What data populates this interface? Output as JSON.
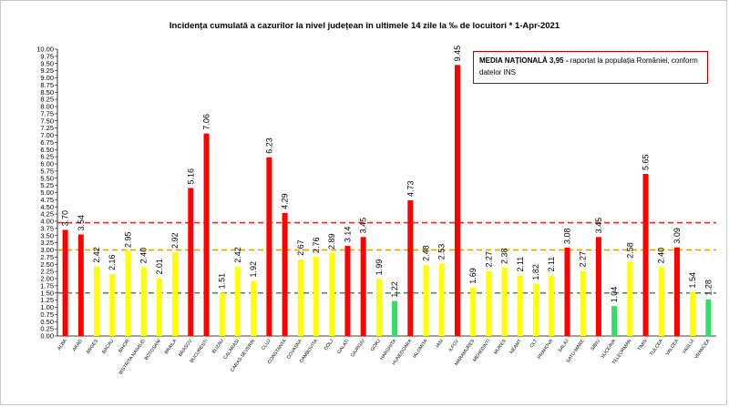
{
  "chart_data": {
    "type": "bar",
    "title": "Incidența cumulată a cazurilor la nivel județean în ultimele 14 zile la ‰ de locuitori * 1-Apr-2021",
    "categories": [
      "ALBA",
      "ARAD",
      "ARGES",
      "BACAU",
      "BIHOR",
      "BISTRITA NASAUD",
      "BOTOSANI",
      "BRAILA",
      "BRASOV",
      "BUCURESTI",
      "BUZAU",
      "CALARASI",
      "CARAS-SEVERIN",
      "CLUJ",
      "CONSTANTA",
      "COVASNA",
      "DAMBOVITA",
      "DOLJ",
      "GALATI",
      "GIURGIU",
      "GORJ",
      "HARGHITA",
      "HUNEDOARA",
      "IALOMITA",
      "IASI",
      "ILFOV",
      "MARAMURES",
      "MEHEDINTI",
      "MURES",
      "NEAMT",
      "OLT",
      "PRAHOVA",
      "SALAJ",
      "SATU-MARE",
      "SIBIU",
      "SUCEAVA",
      "TELEORMAN",
      "TIMIS",
      "TULCEA",
      "VALCEA",
      "VASLUI",
      "VRANCEA"
    ],
    "values": [
      3.7,
      3.54,
      2.42,
      2.16,
      2.95,
      2.4,
      2.01,
      2.92,
      5.16,
      7.06,
      1.51,
      2.42,
      1.92,
      6.23,
      4.29,
      2.67,
      2.76,
      2.89,
      3.14,
      3.45,
      1.99,
      1.22,
      4.73,
      2.48,
      2.53,
      9.45,
      1.69,
      2.27,
      2.38,
      2.11,
      1.82,
      2.11,
      3.08,
      2.27,
      3.45,
      1.04,
      2.58,
      5.65,
      2.4,
      3.09,
      1.54,
      1.28
    ],
    "value_labels": [
      "3.70",
      "3.54",
      "2.42",
      "2.16",
      "2.95",
      "2.40",
      "2.01",
      "2.92",
      "5.16",
      "7.06",
      "1.51",
      "2.42",
      "1.92",
      "6.23",
      "4.29",
      "2.67",
      "2.76",
      "2.89",
      "3.14",
      "3.45",
      "1.99",
      "1.22",
      "4.73",
      "2.48",
      "2.53",
      "9.45",
      "1.69",
      "2.27",
      "2.38",
      "2.11",
      "1.82",
      "2.11",
      "3.08",
      "2.27",
      "3.45",
      "1.04",
      "2.58",
      "5.65",
      "2.40",
      "3.09",
      "1.54",
      "1.28"
    ],
    "ylim": [
      0,
      10
    ],
    "ytick_labels": [
      "0.00",
      "0.25",
      "0.50",
      "0.75",
      "1.00",
      "1.25",
      "1.50",
      "1.75",
      "2.00",
      "2.25",
      "2.50",
      "2.75",
      "3.00",
      "3.25",
      "3.50",
      "3.75",
      "4.00",
      "4.25",
      "4.50",
      "4.75",
      "5.00",
      "5.25",
      "5.50",
      "5.75",
      "6.00",
      "6.25",
      "6.50",
      "6.75",
      "7.00",
      "7.25",
      "7.50",
      "7.75",
      "8.00",
      "8.25",
      "8.50",
      "8.75",
      "9.00",
      "9.25",
      "9.50",
      "9.75",
      "10.00"
    ],
    "reference_lines": [
      {
        "value": 3.95,
        "color": "#e03030"
      },
      {
        "value": 3.0,
        "color": "#e0a000"
      },
      {
        "value": 1.5,
        "color": "#30a030"
      }
    ],
    "color_rules": {
      "high_color": "#ff0000",
      "mid_color": "#ffff00",
      "low_color": "#33dd66",
      "high_threshold": 3.0,
      "low_threshold": 1.5
    },
    "grid": false,
    "xlabel": "",
    "ylabel": ""
  },
  "note": {
    "bold": "MEDIA NAȚIONALĂ  3,95 -",
    "rest": " raportat la populația României, conform datelor INS"
  }
}
